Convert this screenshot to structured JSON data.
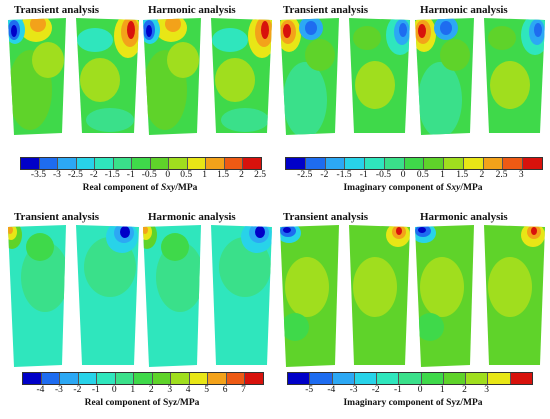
{
  "labels": {
    "transient": "Transient analysis",
    "harmonic": "Harmonic analysis"
  },
  "panels": [
    {
      "id": "real-sxy",
      "ticks": [
        "-3.5",
        "-3",
        "-2.5",
        "-2",
        "-1.5",
        "-1",
        "-0.5",
        "0",
        "0.5",
        "1",
        "1.5",
        "2",
        "2.5"
      ],
      "colors": [
        "#0000c8",
        "#1e6cf0",
        "#2ca8f4",
        "#28d3e9",
        "#2fe6bd",
        "#3ae08a",
        "#3fd94a",
        "#5fd32a",
        "#a0de1e",
        "#e8e616",
        "#f3a21a",
        "#ee5a14",
        "#d8120c"
      ],
      "caption_pre": "Real component of ",
      "caption_var": "Sxy",
      "caption_post": "/MPa",
      "var_italic": true
    },
    {
      "id": "imag-sxy",
      "ticks": [
        "-2.5",
        "-2",
        "-1.5",
        "-1",
        "-0.5",
        "0",
        "0.5",
        "1",
        "1.5",
        "2",
        "2.5",
        "3"
      ],
      "colors": [
        "#0000c8",
        "#1e6cf0",
        "#2ca8f4",
        "#28d3e9",
        "#2fe6bd",
        "#3ae08a",
        "#3fd94a",
        "#5fd32a",
        "#a0de1e",
        "#e8e616",
        "#f3a21a",
        "#ee5a14",
        "#d8120c"
      ],
      "caption_pre": "Imaginary component of ",
      "caption_var": "Sxy",
      "caption_post": "/MPa",
      "var_italic": true
    },
    {
      "id": "real-syz",
      "ticks": [
        "-4",
        "-3",
        "-2",
        "-1",
        "0",
        "1",
        "2",
        "3",
        "4",
        "5",
        "6",
        "7"
      ],
      "colors": [
        "#0000c8",
        "#1e6cf0",
        "#2ca8f4",
        "#28d3e9",
        "#2fe6bd",
        "#3ae08a",
        "#3fd94a",
        "#5fd32a",
        "#a0de1e",
        "#e8e616",
        "#f3a21a",
        "#ee5a14",
        "#d8120c"
      ],
      "caption_pre": "Real component of ",
      "caption_var": "Syz",
      "caption_post": "/MPa",
      "var_italic": false
    },
    {
      "id": "imag-syz",
      "ticks": [
        "-5",
        "-4",
        "-3",
        "-2",
        "-1",
        "0",
        "1",
        "2",
        "3"
      ],
      "colors": [
        "#0000c8",
        "#1e6cf0",
        "#2ca8f4",
        "#28d3e9",
        "#2fe6bd",
        "#3ae08a",
        "#3fd94a",
        "#5fd32a",
        "#a0de1e",
        "#e8e616",
        "#d8120c"
      ],
      "caption_pre": "Imaginary component of ",
      "caption_var": "Syz",
      "caption_post": "/MPa",
      "var_italic": false
    }
  ]
}
